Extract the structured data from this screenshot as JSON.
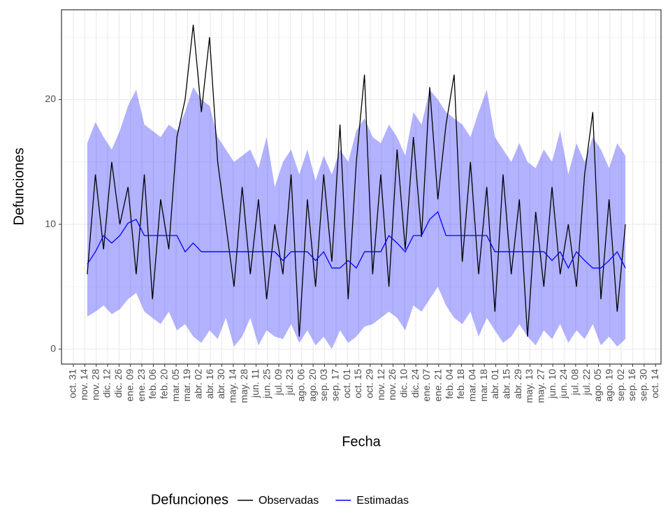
{
  "chart_data": {
    "type": "line",
    "x_label": "Fecha",
    "y_label": "Defunciones",
    "legend_title": "Defunciones",
    "legend_position": "bottom",
    "grid": true,
    "xlim": [
      -14.6,
      720.7
    ],
    "xticks": [
      {
        "value": 0,
        "label": "oct. 31"
      },
      {
        "value": 14,
        "label": "nov. 14"
      },
      {
        "value": 28,
        "label": "nov. 28"
      },
      {
        "value": 42,
        "label": "dic. 12"
      },
      {
        "value": 56,
        "label": "dic. 26"
      },
      {
        "value": 70,
        "label": "ene. 09"
      },
      {
        "value": 84,
        "label": "ene. 23"
      },
      {
        "value": 98,
        "label": "feb. 06"
      },
      {
        "value": 112,
        "label": "feb. 20"
      },
      {
        "value": 126,
        "label": "mar. 05"
      },
      {
        "value": 140,
        "label": "mar. 19"
      },
      {
        "value": 154,
        "label": "abr. 02"
      },
      {
        "value": 168,
        "label": "abr. 16"
      },
      {
        "value": 182,
        "label": "abr. 30"
      },
      {
        "value": 196,
        "label": "may. 14"
      },
      {
        "value": 210,
        "label": "may. 28"
      },
      {
        "value": 224,
        "label": "jun. 11"
      },
      {
        "value": 238,
        "label": "jun. 25"
      },
      {
        "value": 252,
        "label": "jul. 09"
      },
      {
        "value": 266,
        "label": "jul. 23"
      },
      {
        "value": 280,
        "label": "ago. 06"
      },
      {
        "value": 294,
        "label": "ago. 20"
      },
      {
        "value": 308,
        "label": "sep. 03"
      },
      {
        "value": 322,
        "label": "sep. 17"
      },
      {
        "value": 336,
        "label": "oct. 01"
      },
      {
        "value": 350,
        "label": "oct. 15"
      },
      {
        "value": 364,
        "label": "oct. 29"
      },
      {
        "value": 378,
        "label": "nov. 12"
      },
      {
        "value": 392,
        "label": "nov. 26"
      },
      {
        "value": 406,
        "label": "dic. 10"
      },
      {
        "value": 420,
        "label": "dic. 24"
      },
      {
        "value": 434,
        "label": "ene. 07"
      },
      {
        "value": 448,
        "label": "ene. 21"
      },
      {
        "value": 462,
        "label": "feb. 04"
      },
      {
        "value": 476,
        "label": "feb. 18"
      },
      {
        "value": 490,
        "label": "mar. 04"
      },
      {
        "value": 504,
        "label": "mar. 18"
      },
      {
        "value": 518,
        "label": "abr. 01"
      },
      {
        "value": 532,
        "label": "abr. 15"
      },
      {
        "value": 546,
        "label": "abr. 29"
      },
      {
        "value": 560,
        "label": "may. 13"
      },
      {
        "value": 574,
        "label": "may. 27"
      },
      {
        "value": 588,
        "label": "jun. 10"
      },
      {
        "value": 602,
        "label": "jun. 24"
      },
      {
        "value": 616,
        "label": "jul. 08"
      },
      {
        "value": 630,
        "label": "jul. 22"
      },
      {
        "value": 644,
        "label": "ago. 05"
      },
      {
        "value": 658,
        "label": "ago. 19"
      },
      {
        "value": 672,
        "label": "sep. 02"
      },
      {
        "value": 686,
        "label": "sep. 16"
      },
      {
        "value": 700,
        "label": "sep. 30"
      },
      {
        "value": 714,
        "label": "oct. 14"
      }
    ],
    "ylim": [
      -1.2,
      27.2
    ],
    "yticks": [
      0,
      10,
      20
    ],
    "yminor": [
      5,
      15,
      25
    ],
    "x": [
      17,
      27,
      37,
      47,
      57,
      67,
      77,
      87,
      97,
      107,
      117,
      127,
      137,
      147,
      157,
      167,
      177,
      187,
      197,
      207,
      217,
      227,
      237,
      247,
      257,
      267,
      277,
      287,
      297,
      307,
      317,
      327,
      337,
      347,
      357,
      367,
      377,
      387,
      397,
      407,
      417,
      427,
      437,
      447,
      457,
      467,
      477,
      487,
      497,
      507,
      517,
      527,
      537,
      547,
      557,
      567,
      577,
      587,
      597,
      607,
      617,
      627,
      637,
      647,
      657,
      667,
      677
    ],
    "series": [
      {
        "name": "Observadas",
        "color": "#000000",
        "values": [
          6,
          14,
          8,
          15,
          10,
          13,
          6,
          14,
          4,
          12,
          8,
          17,
          20,
          26,
          19,
          25,
          15,
          10,
          5,
          13,
          6,
          12,
          4,
          10,
          6,
          14,
          1,
          12,
          5,
          14,
          7,
          18,
          4,
          15,
          22,
          6,
          14,
          5,
          16,
          8,
          17,
          9,
          21,
          12,
          18,
          22,
          7,
          15,
          6,
          13,
          3,
          14,
          6,
          12,
          1,
          11,
          5,
          13,
          6,
          10,
          5,
          14,
          19,
          4,
          12,
          3,
          10
        ]
      },
      {
        "name": "Estimadas",
        "color": "#0000ff",
        "band_color": "#0000ff",
        "values": [
          6.8,
          7.8,
          9.1,
          8.5,
          9.1,
          10.1,
          10.4,
          9.1,
          9.1,
          9.1,
          9.1,
          9.1,
          7.8,
          8.5,
          7.8,
          7.8,
          7.8,
          7.8,
          7.8,
          7.8,
          7.8,
          7.8,
          7.8,
          7.8,
          7.1,
          7.8,
          7.8,
          7.8,
          7.1,
          7.8,
          6.5,
          6.5,
          7.1,
          6.5,
          7.8,
          7.8,
          7.8,
          9.1,
          8.5,
          7.8,
          9.1,
          9.1,
          10.4,
          11.0,
          9.1,
          9.1,
          9.1,
          9.1,
          9.1,
          9.1,
          7.8,
          7.8,
          7.8,
          7.8,
          7.8,
          7.8,
          7.8,
          7.1,
          7.8,
          6.5,
          7.8,
          7.1,
          6.5,
          6.5,
          7.1,
          7.8,
          6.5
        ],
        "lower": [
          2.6,
          3.0,
          3.5,
          2.8,
          3.2,
          4.0,
          4.5,
          3.0,
          2.5,
          2.0,
          3.0,
          1.5,
          2.0,
          1.0,
          0.5,
          1.5,
          0.8,
          2.5,
          0.2,
          1.0,
          2.5,
          0.3,
          1.5,
          1.0,
          0.8,
          2.0,
          0.5,
          1.5,
          0.3,
          1.0,
          0.0,
          1.5,
          0.5,
          1.0,
          1.8,
          2.0,
          2.5,
          3.0,
          2.5,
          1.5,
          3.5,
          3.0,
          4.0,
          5.0,
          3.5,
          2.5,
          2.0,
          3.0,
          1.0,
          2.5,
          1.5,
          0.5,
          1.0,
          2.0,
          1.0,
          0.3,
          1.5,
          0.8,
          2.0,
          0.5,
          1.5,
          0.8,
          2.0,
          0.3,
          1.0,
          0.2,
          0.8
        ],
        "upper": [
          16.5,
          18.2,
          17.0,
          16.0,
          17.5,
          19.5,
          20.8,
          18.0,
          17.5,
          17.0,
          18.0,
          17.5,
          19.0,
          21.0,
          20.0,
          19.5,
          17.0,
          16.0,
          15.0,
          15.5,
          16.0,
          14.5,
          17.0,
          13.0,
          15.0,
          16.0,
          14.0,
          16.0,
          13.5,
          15.5,
          14.0,
          16.0,
          15.0,
          17.5,
          18.5,
          17.0,
          16.5,
          18.0,
          17.0,
          15.5,
          19.0,
          18.0,
          20.8,
          20.0,
          19.0,
          18.5,
          18.0,
          17.0,
          19.0,
          20.8,
          17.0,
          16.0,
          15.0,
          16.5,
          15.0,
          14.5,
          16.0,
          15.0,
          17.5,
          14.0,
          16.5,
          15.0,
          17.0,
          16.0,
          14.5,
          16.5,
          15.5
        ]
      }
    ]
  }
}
